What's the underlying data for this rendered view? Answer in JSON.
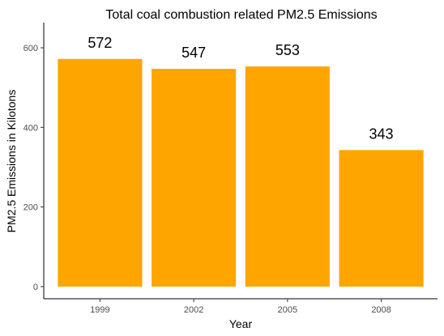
{
  "chart_data": {
    "type": "bar",
    "title": "Total coal combustion related PM2.5 Emissions",
    "xlabel": "Year",
    "ylabel": "PM2.5 Emissions in Kilotons",
    "categories": [
      "1999",
      "2002",
      "2005",
      "2008"
    ],
    "values": [
      572,
      547,
      553,
      343
    ],
    "data_labels": [
      "572",
      "547",
      "553",
      "343"
    ],
    "ylim": [
      0,
      650
    ],
    "yticks": [
      0,
      200,
      400,
      600
    ],
    "ytick_labels": [
      "0",
      "200",
      "400",
      "600"
    ],
    "bar_color": "#ffa500",
    "grid": false,
    "legend": "none"
  }
}
